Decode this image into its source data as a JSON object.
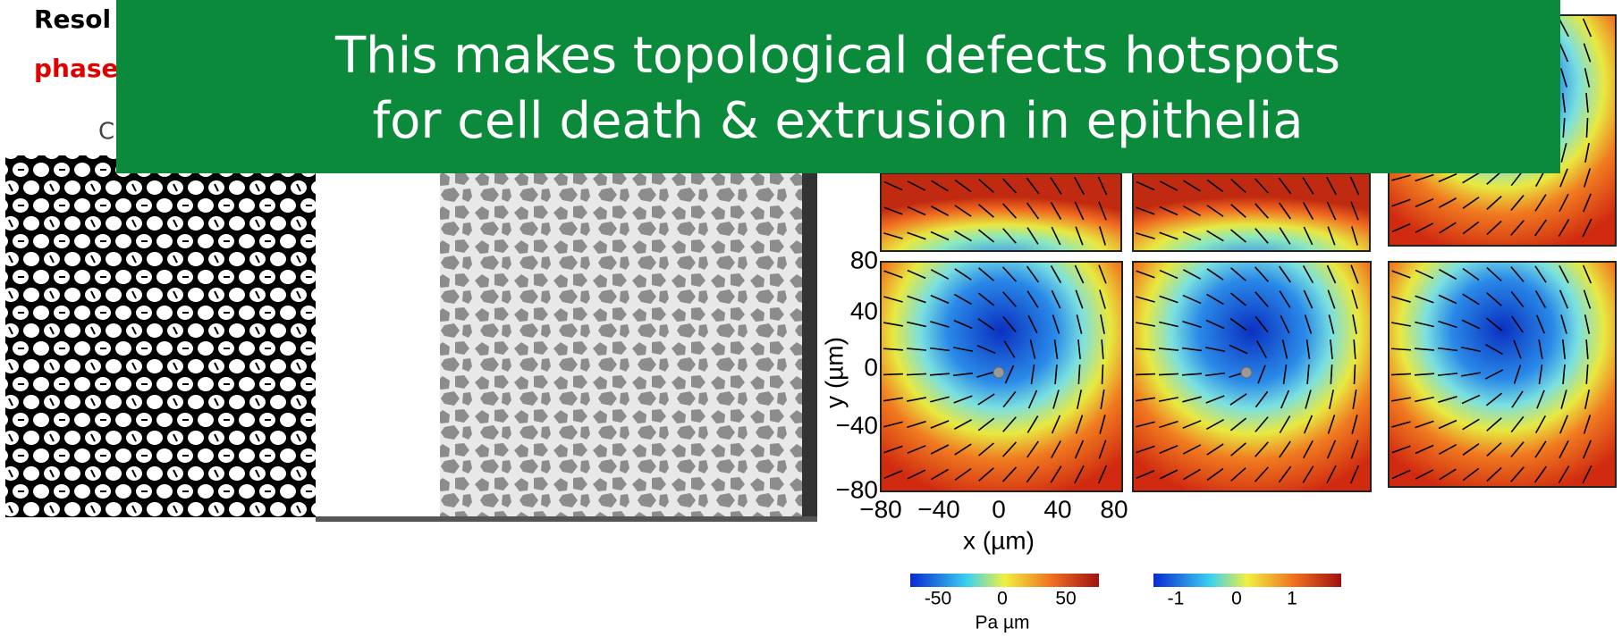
{
  "slide": {
    "title_fragment": "Resol",
    "subtitle_fragment": "phase",
    "caption_fragment": "C",
    "banner": [
      "This makes topological defects hotspots",
      "for cell death & extrusion in epithelia"
    ],
    "figure": {
      "y_axis_label": "y (µm)",
      "x_axis_label": "x (µm)",
      "y_ticks": [
        "80",
        "40",
        "0",
        "−40",
        "−80"
      ],
      "x_ticks": [
        "−80",
        "−40",
        "0",
        "40",
        "80"
      ],
      "colorbar_left": {
        "ticks": [
          "-50",
          "0",
          "50"
        ],
        "unit": "Pa µm"
      },
      "colorbar_right": {
        "ticks": [
          "-1",
          "0",
          "1"
        ]
      }
    }
  }
}
